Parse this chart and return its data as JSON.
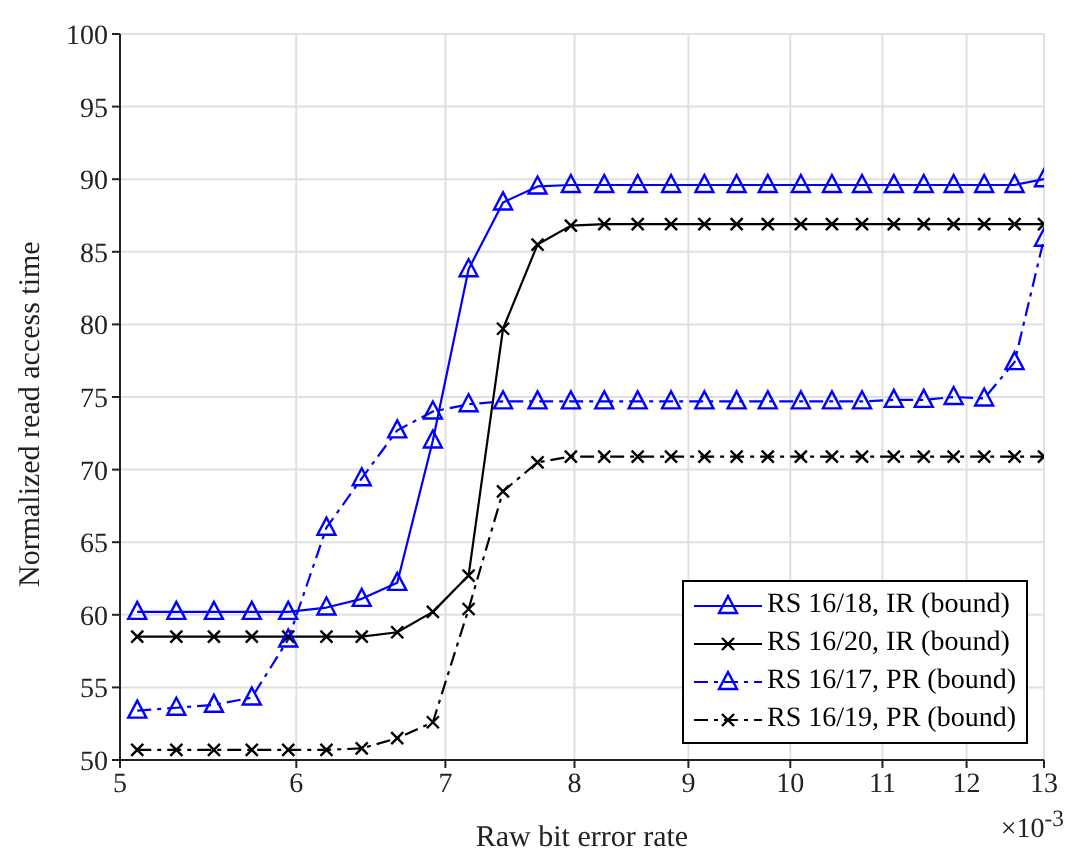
{
  "chart_data": {
    "type": "line",
    "xlabel": "Raw bit error rate",
    "ylabel": "Normalized read access time",
    "log": "x",
    "x": [
      5.09,
      5.3,
      5.51,
      5.73,
      5.95,
      6.19,
      6.42,
      6.66,
      6.91,
      7.17,
      7.43,
      7.7,
      7.97,
      8.25,
      8.54,
      8.84,
      9.15,
      9.46,
      9.77,
      10.11,
      10.44,
      10.77,
      11.13,
      11.48,
      11.84,
      12.22,
      12.61,
      13
    ],
    "series": [
      {
        "name": "RS 16/18, IR (bound)",
        "color": "#0000ff",
        "marker": "triangle",
        "line_style": "solid",
        "values": [
          60.2,
          60.2,
          60.2,
          60.2,
          60.2,
          60.5,
          61.1,
          62.2,
          72.0,
          83.8,
          88.4,
          89.5,
          89.6,
          89.6,
          89.6,
          89.6,
          89.6,
          89.6,
          89.6,
          89.6,
          89.6,
          89.6,
          89.6,
          89.6,
          89.6,
          89.6,
          89.6,
          90.0
        ]
      },
      {
        "name": "RS 16/20, IR (bound)",
        "color": "#000000",
        "marker": "cross",
        "line_style": "solid",
        "values": [
          58.5,
          58.5,
          58.5,
          58.5,
          58.5,
          58.5,
          58.5,
          58.8,
          60.2,
          62.7,
          79.7,
          85.5,
          86.8,
          86.9,
          86.9,
          86.9,
          86.9,
          86.9,
          86.9,
          86.9,
          86.9,
          86.9,
          86.9,
          86.9,
          86.9,
          86.9,
          86.9,
          86.9
        ]
      },
      {
        "name": "RS 16/17, PR (bound)",
        "color": "#0000ff",
        "marker": "triangle",
        "line_style": "dashed",
        "values": [
          53.4,
          53.6,
          53.8,
          54.3,
          58.3,
          66.0,
          69.4,
          72.7,
          74.0,
          74.5,
          74.7,
          74.7,
          74.7,
          74.7,
          74.7,
          74.7,
          74.7,
          74.7,
          74.7,
          74.7,
          74.7,
          74.7,
          74.8,
          74.8,
          75.0,
          74.9,
          77.4,
          85.9
        ]
      },
      {
        "name": "RS 16/19, PR (bound)",
        "color": "#000000",
        "marker": "cross",
        "line_style": "dashed",
        "values": [
          50.7,
          50.7,
          50.7,
          50.7,
          50.7,
          50.7,
          50.8,
          51.5,
          52.6,
          60.4,
          68.5,
          70.5,
          70.9,
          70.9,
          70.9,
          70.9,
          70.9,
          70.9,
          70.9,
          70.9,
          70.9,
          70.9,
          70.9,
          70.9,
          70.9,
          70.9,
          70.9,
          70.9
        ]
      }
    ],
    "xlim": [
      5,
      13
    ],
    "xticks": [
      5,
      6,
      7,
      8,
      9,
      10,
      11,
      12,
      13
    ],
    "ylim": [
      50,
      100
    ],
    "yticks": [
      50,
      55,
      60,
      65,
      70,
      75,
      80,
      85,
      90,
      95,
      100
    ],
    "grid": true,
    "legend": "bottom right",
    "annotations": [
      "×10$^{-3}$"
    ]
  }
}
